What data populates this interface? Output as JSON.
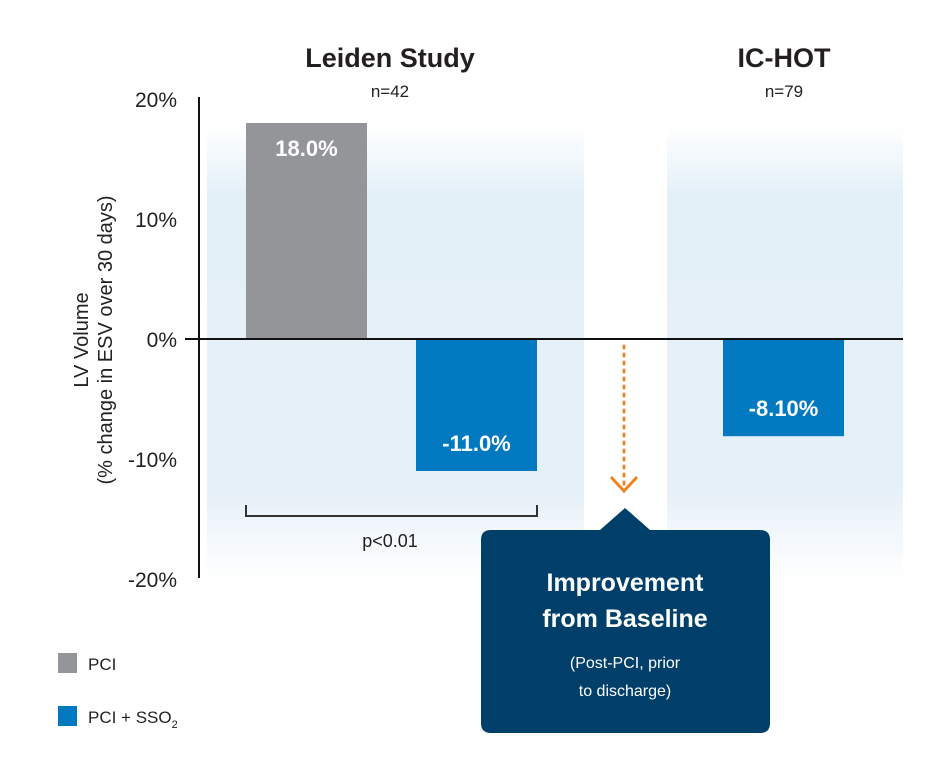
{
  "chart_data": {
    "type": "bar",
    "ylabel_line1": "LV Volume",
    "ylabel_line2": "(% change in ESV over 30 days)",
    "ylim": [
      -20,
      20
    ],
    "yticks": [
      "20%",
      "10%",
      "0%",
      "-10%",
      "-20%"
    ],
    "yticks_values": [
      20,
      10,
      0,
      -10,
      -20
    ],
    "groups": [
      {
        "title": "Leiden Study",
        "n": "n=42",
        "bars": [
          {
            "series": "PCI",
            "value": 18.0,
            "label": "18.0%"
          },
          {
            "series": "PCI + SSO2",
            "value": -11.0,
            "label": "-11.0%"
          }
        ],
        "significance": "p<0.01"
      },
      {
        "title": "IC-HOT",
        "n": "n=79",
        "bars": [
          {
            "series": "PCI + SSO2",
            "value": -8.1,
            "label": "-8.10%"
          }
        ]
      }
    ],
    "legend": [
      {
        "name": "PCI",
        "color": "#939598"
      },
      {
        "name": "PCI + SSO",
        "subscript": "2",
        "color": "#0079c1"
      }
    ],
    "legend_position": "bottom-left",
    "grid": false
  },
  "callout": {
    "title_line1": "Improvement",
    "title_line2": "from Baseline",
    "sub_line1": "(Post-PCI, prior",
    "sub_line2": "to discharge)",
    "color": "#003f6a",
    "arrow_color": "#f58220"
  }
}
